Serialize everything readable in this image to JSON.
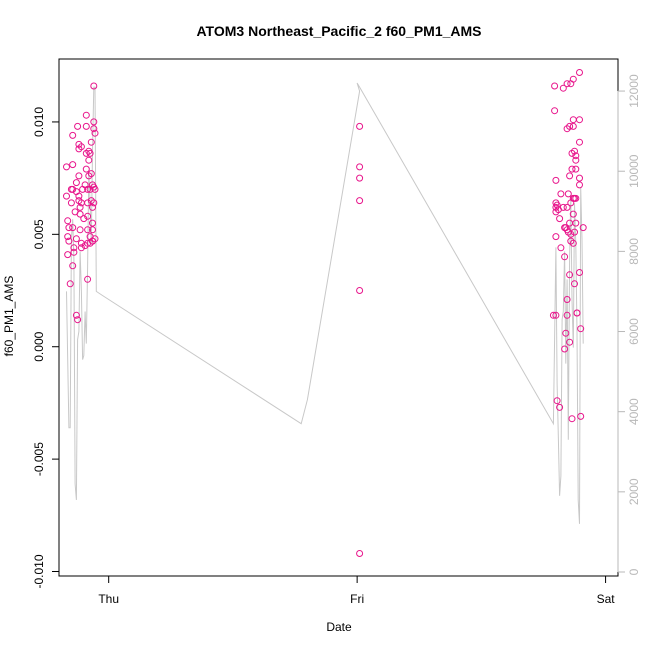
{
  "chart_data": {
    "type": "scatter",
    "title": "ATOM3 Northeast_Pacific_2 f60_PM1_AMS",
    "xlabel": "Date",
    "ylabel": "f60_PM1_AMS",
    "x_tick_labels": [
      "Thu",
      "Fri",
      "Sat"
    ],
    "x_tick_positions": [
      0,
      1,
      2
    ],
    "xlim": [
      -0.2,
      2.05
    ],
    "ylim": [
      -0.0102,
      0.0128
    ],
    "y_ticks": [
      -0.01,
      -0.005,
      0.0,
      0.005,
      0.01
    ],
    "y_tick_labels": [
      "-0.010",
      "-0.005",
      "0.000",
      "0.005",
      "0.010"
    ],
    "y2lim": [
      -100,
      12800
    ],
    "y2_ticks": [
      0,
      2000,
      4000,
      6000,
      8000,
      10000,
      12000
    ],
    "y2_tick_labels": [
      "0",
      "2000",
      "4000",
      "6000",
      "8000",
      "10000",
      "12000"
    ],
    "colors": {
      "points": "#e8168c",
      "line": "#c8c8c8",
      "right_axis": "#b8b8b8"
    },
    "series": [
      {
        "kind": "points",
        "axis": "left",
        "points": [
          [
            -0.17,
            0.008
          ],
          [
            -0.17,
            0.0067
          ],
          [
            -0.165,
            0.0056
          ],
          [
            -0.16,
            0.0053
          ],
          [
            -0.165,
            0.0049
          ],
          [
            -0.165,
            0.0041
          ],
          [
            -0.16,
            0.0047
          ],
          [
            -0.155,
            0.0028
          ],
          [
            -0.15,
            0.007
          ],
          [
            -0.15,
            0.0064
          ],
          [
            -0.145,
            0.0094
          ],
          [
            -0.145,
            0.0081
          ],
          [
            -0.145,
            0.007
          ],
          [
            -0.145,
            0.0053
          ],
          [
            -0.14,
            0.0042
          ],
          [
            -0.145,
            0.0036
          ],
          [
            -0.14,
            0.0044
          ],
          [
            -0.13,
            0.0069
          ],
          [
            -0.13,
            0.0073
          ],
          [
            -0.135,
            0.006
          ],
          [
            -0.13,
            0.0048
          ],
          [
            -0.13,
            0.0014
          ],
          [
            -0.125,
            0.0012
          ],
          [
            -0.125,
            0.0098
          ],
          [
            -0.12,
            0.009
          ],
          [
            -0.12,
            0.0088
          ],
          [
            -0.12,
            0.0076
          ],
          [
            -0.12,
            0.0067
          ],
          [
            -0.12,
            0.0065
          ],
          [
            -0.115,
            0.0062
          ],
          [
            -0.115,
            0.0059
          ],
          [
            -0.115,
            0.0052
          ],
          [
            -0.11,
            0.0089
          ],
          [
            -0.11,
            0.0064
          ],
          [
            -0.11,
            0.0044
          ],
          [
            -0.11,
            0.0046
          ],
          [
            -0.105,
            0.007
          ],
          [
            -0.1,
            0.0057
          ],
          [
            -0.095,
            0.0072
          ],
          [
            -0.095,
            0.0045
          ],
          [
            -0.09,
            0.0103
          ],
          [
            -0.09,
            0.0098
          ],
          [
            -0.09,
            0.0086
          ],
          [
            -0.09,
            0.0079
          ],
          [
            -0.085,
            0.007
          ],
          [
            -0.085,
            0.0064
          ],
          [
            -0.085,
            0.0058
          ],
          [
            -0.085,
            0.0052
          ],
          [
            -0.085,
            0.0046
          ],
          [
            -0.085,
            0.003
          ],
          [
            -0.08,
            0.0087
          ],
          [
            -0.08,
            0.0083
          ],
          [
            -0.08,
            0.0076
          ],
          [
            -0.075,
            0.0086
          ],
          [
            -0.075,
            0.007
          ],
          [
            -0.075,
            0.0049
          ],
          [
            -0.075,
            0.0046
          ],
          [
            -0.07,
            0.0091
          ],
          [
            -0.07,
            0.0077
          ],
          [
            -0.07,
            0.0065
          ],
          [
            -0.065,
            0.0072
          ],
          [
            -0.065,
            0.0062
          ],
          [
            -0.065,
            0.0055
          ],
          [
            -0.065,
            0.0047
          ],
          [
            -0.065,
            0.0047
          ],
          [
            -0.065,
            0.0052
          ],
          [
            -0.06,
            0.0116
          ],
          [
            -0.06,
            0.0097
          ],
          [
            -0.06,
            0.01
          ],
          [
            -0.06,
            0.0071
          ],
          [
            -0.06,
            0.0064
          ],
          [
            -0.055,
            0.0095
          ],
          [
            -0.055,
            0.0048
          ],
          [
            -0.055,
            0.007
          ],
          [
            1.01,
            0.0098
          ],
          [
            1.01,
            0.008
          ],
          [
            1.01,
            0.0075
          ],
          [
            1.01,
            0.0065
          ],
          [
            1.01,
            0.0025
          ],
          [
            1.01,
            -0.0092
          ],
          [
            1.79,
            0.0014
          ],
          [
            1.795,
            0.0116
          ],
          [
            1.795,
            0.0105
          ],
          [
            1.8,
            0.0074
          ],
          [
            1.8,
            0.0064
          ],
          [
            1.8,
            0.0062
          ],
          [
            1.8,
            0.006
          ],
          [
            1.8,
            0.0049
          ],
          [
            1.8,
            0.0014
          ],
          [
            1.805,
            0.0063
          ],
          [
            1.805,
            -0.0024
          ],
          [
            1.81,
            0.0061
          ],
          [
            1.815,
            0.0057
          ],
          [
            1.815,
            -0.0027
          ],
          [
            1.82,
            0.0068
          ],
          [
            1.82,
            0.0044
          ],
          [
            1.83,
            0.0115
          ],
          [
            1.83,
            0.0062
          ],
          [
            1.835,
            0.0053
          ],
          [
            1.835,
            0.004
          ],
          [
            1.835,
            -0.0001
          ],
          [
            1.84,
            0.0053
          ],
          [
            1.84,
            0.0006
          ],
          [
            1.845,
            0.0117
          ],
          [
            1.845,
            0.0097
          ],
          [
            1.845,
            0.0062
          ],
          [
            1.845,
            0.0052
          ],
          [
            1.845,
            0.0014
          ],
          [
            1.845,
            0.0021
          ],
          [
            1.85,
            0.0068
          ],
          [
            1.85,
            0.0051
          ],
          [
            1.855,
            0.0098
          ],
          [
            1.855,
            0.0076
          ],
          [
            1.855,
            0.0055
          ],
          [
            1.855,
            0.0032
          ],
          [
            1.855,
            0.0002
          ],
          [
            1.86,
            0.0117
          ],
          [
            1.86,
            0.0064
          ],
          [
            1.86,
            0.005
          ],
          [
            1.86,
            0.0047
          ],
          [
            1.865,
            0.0086
          ],
          [
            1.865,
            0.0079
          ],
          [
            1.865,
            -0.0032
          ],
          [
            1.87,
            0.0119
          ],
          [
            1.87,
            0.0101
          ],
          [
            1.87,
            0.0098
          ],
          [
            1.87,
            0.0066
          ],
          [
            1.87,
            0.0059
          ],
          [
            1.87,
            0.0046
          ],
          [
            1.875,
            0.0087
          ],
          [
            1.875,
            0.0066
          ],
          [
            1.875,
            0.0051
          ],
          [
            1.875,
            0.0028
          ],
          [
            1.88,
            0.0085
          ],
          [
            1.88,
            0.0083
          ],
          [
            1.88,
            0.0079
          ],
          [
            1.88,
            0.0066
          ],
          [
            1.88,
            0.0055
          ],
          [
            1.885,
            0.0015
          ],
          [
            1.885,
            0.0015
          ],
          [
            1.895,
            0.0122
          ],
          [
            1.895,
            0.0101
          ],
          [
            1.895,
            0.0091
          ],
          [
            1.895,
            0.0075
          ],
          [
            1.895,
            0.0072
          ],
          [
            1.895,
            0.0033
          ],
          [
            1.9,
            -0.0031
          ],
          [
            1.9,
            0.0008
          ],
          [
            1.91,
            0.0053
          ]
        ]
      },
      {
        "kind": "line",
        "axis": "right",
        "points": [
          [
            -0.17,
            7000
          ],
          [
            -0.16,
            3600
          ],
          [
            -0.155,
            3600
          ],
          [
            -0.15,
            8300
          ],
          [
            -0.145,
            8800
          ],
          [
            -0.14,
            7800
          ],
          [
            -0.135,
            2200
          ],
          [
            -0.13,
            1800
          ],
          [
            -0.125,
            5800
          ],
          [
            -0.12,
            6000
          ],
          [
            -0.115,
            8000
          ],
          [
            -0.11,
            7000
          ],
          [
            -0.105,
            5300
          ],
          [
            -0.1,
            5400
          ],
          [
            -0.095,
            6500
          ],
          [
            -0.09,
            5700
          ],
          [
            -0.085,
            7600
          ],
          [
            -0.08,
            10000
          ],
          [
            -0.075,
            9200
          ],
          [
            -0.07,
            8200
          ],
          [
            -0.065,
            10500
          ],
          [
            -0.06,
            12100
          ],
          [
            -0.055,
            12100
          ],
          [
            -0.05,
            7000
          ],
          [
            -0.025,
            6900
          ],
          [
            0.775,
            3700
          ],
          [
            0.8,
            4300
          ],
          [
            1.01,
            12000
          ],
          [
            1.0,
            12200
          ],
          [
            1.01,
            12100
          ],
          [
            1.79,
            3700
          ],
          [
            1.8,
            8100
          ],
          [
            1.805,
            4700
          ],
          [
            1.81,
            3300
          ],
          [
            1.815,
            1900
          ],
          [
            1.82,
            2400
          ],
          [
            1.825,
            6300
          ],
          [
            1.83,
            6500
          ],
          [
            1.835,
            8000
          ],
          [
            1.84,
            5200
          ],
          [
            1.845,
            7300
          ],
          [
            1.85,
            3300
          ],
          [
            1.855,
            7800
          ],
          [
            1.86,
            9400
          ],
          [
            1.865,
            6800
          ],
          [
            1.87,
            5600
          ],
          [
            1.875,
            9200
          ],
          [
            1.88,
            8200
          ],
          [
            1.885,
            6000
          ],
          [
            1.89,
            1800
          ],
          [
            1.895,
            1200
          ],
          [
            1.9,
            9600
          ],
          [
            1.905,
            8300
          ],
          [
            1.91,
            5700
          ]
        ]
      }
    ]
  }
}
